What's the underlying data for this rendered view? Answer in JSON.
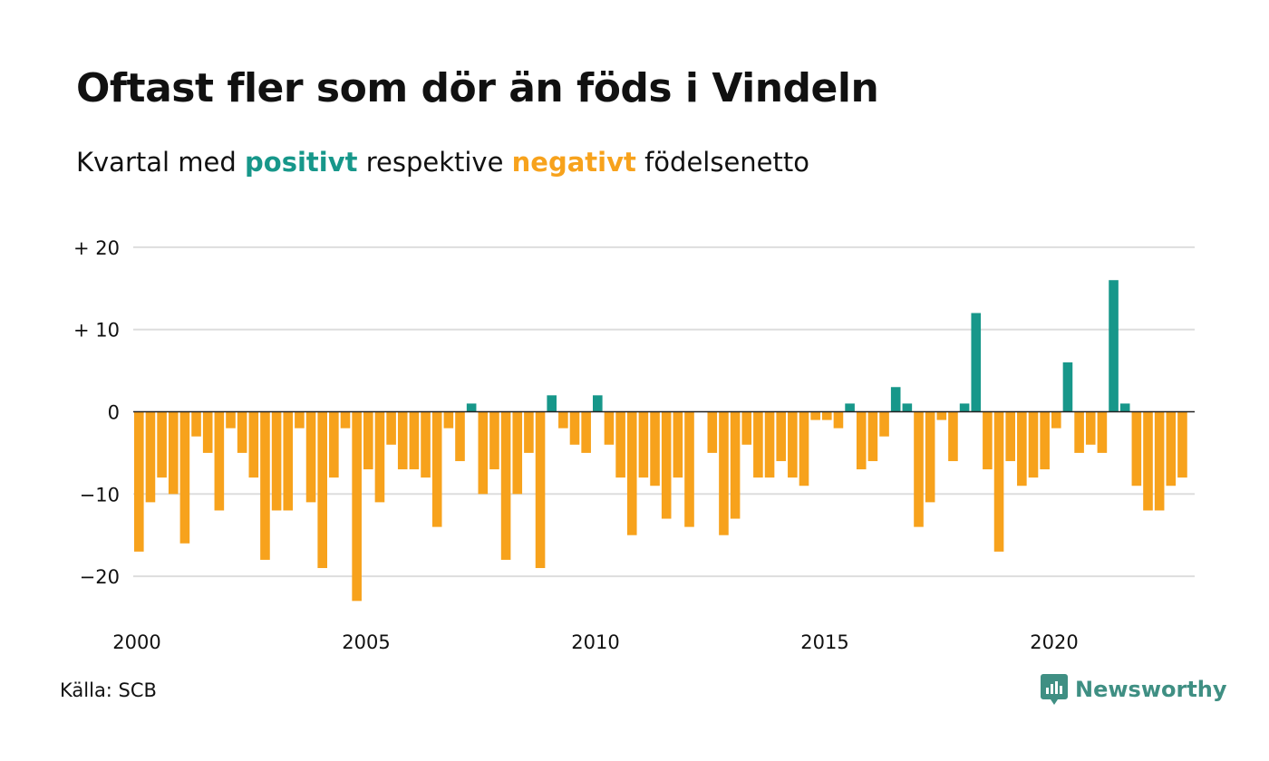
{
  "title": "Oftast fler som dör än föds i Vindeln",
  "subtitle": {
    "before": "Kvartal med ",
    "positive_word": "positivt",
    "middle": " respektive ",
    "negative_word": "negativt",
    "after": " födelsenetto"
  },
  "source": "Källa: SCB",
  "logo_text": "Newsworthy",
  "colors": {
    "positive": "#17978a",
    "negative": "#f7a21c",
    "grid": "#dddddd",
    "zero_line": "#222222",
    "logo": "#3f8f83"
  },
  "chart_data": {
    "type": "bar",
    "x_start": "2000 Q1",
    "x_ticks": [
      "2000",
      "2005",
      "2010",
      "2015",
      "2020"
    ],
    "y_ticks": [
      {
        "value": 20,
        "label": "+ 20"
      },
      {
        "value": 10,
        "label": "+ 10"
      },
      {
        "value": 0,
        "label": "0"
      },
      {
        "value": -10,
        "label": "−10"
      },
      {
        "value": -20,
        "label": "−20"
      }
    ],
    "ylim": [
      -25,
      20
    ],
    "grid": true,
    "values": [
      -17,
      -11,
      -8,
      -10,
      -16,
      -3,
      -5,
      -12,
      -2,
      -5,
      -8,
      -18,
      -12,
      -12,
      -2,
      -11,
      -19,
      -8,
      -2,
      -23,
      -7,
      -11,
      -4,
      -7,
      -7,
      -8,
      -14,
      -2,
      -6,
      1,
      -10,
      -7,
      -18,
      -10,
      -5,
      -19,
      2,
      -2,
      -4,
      -5,
      2,
      -4,
      -8,
      -15,
      -8,
      -9,
      -13,
      -8,
      -14,
      0,
      -5,
      -15,
      -13,
      -4,
      -8,
      -8,
      -6,
      -8,
      -9,
      -1,
      -1,
      -2,
      1,
      -7,
      -6,
      -3,
      3,
      1,
      -14,
      -11,
      -1,
      -6,
      1,
      12,
      -7,
      -17,
      -6,
      -9,
      -8,
      -7,
      -2,
      6,
      -5,
      -4,
      -5,
      16,
      1,
      -9,
      -12,
      -12,
      -9,
      -8
    ]
  }
}
